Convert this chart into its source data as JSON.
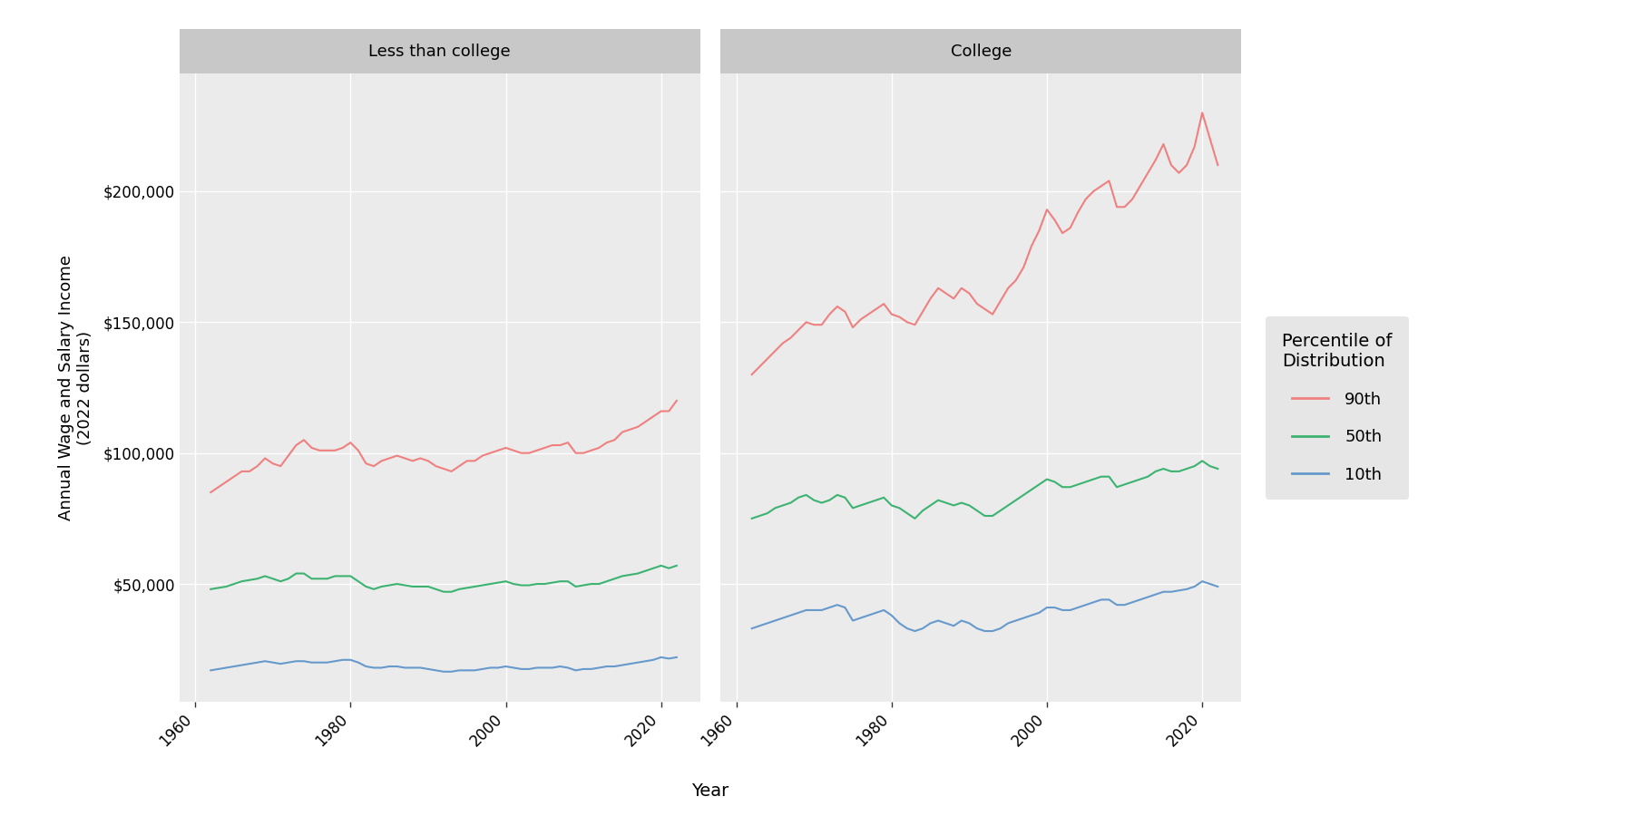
{
  "years": [
    1962,
    1963,
    1964,
    1965,
    1966,
    1967,
    1968,
    1969,
    1970,
    1971,
    1972,
    1973,
    1974,
    1975,
    1976,
    1977,
    1978,
    1979,
    1980,
    1981,
    1982,
    1983,
    1984,
    1985,
    1986,
    1987,
    1988,
    1989,
    1990,
    1991,
    1992,
    1993,
    1994,
    1995,
    1996,
    1997,
    1998,
    1999,
    2000,
    2001,
    2002,
    2003,
    2004,
    2005,
    2006,
    2007,
    2008,
    2009,
    2010,
    2011,
    2012,
    2013,
    2014,
    2015,
    2016,
    2017,
    2018,
    2019,
    2020,
    2021,
    2022
  ],
  "noncollege_p90": [
    85000,
    87000,
    89000,
    91000,
    93000,
    93000,
    95000,
    98000,
    96000,
    95000,
    99000,
    103000,
    105000,
    102000,
    101000,
    101000,
    101000,
    102000,
    104000,
    101000,
    96000,
    95000,
    97000,
    98000,
    99000,
    98000,
    97000,
    98000,
    97000,
    95000,
    94000,
    93000,
    95000,
    97000,
    97000,
    99000,
    100000,
    101000,
    102000,
    101000,
    100000,
    100000,
    101000,
    102000,
    103000,
    103000,
    104000,
    100000,
    100000,
    101000,
    102000,
    104000,
    105000,
    108000,
    109000,
    110000,
    112000,
    114000,
    116000,
    116000,
    120000
  ],
  "noncollege_p50": [
    48000,
    48500,
    49000,
    50000,
    51000,
    51500,
    52000,
    53000,
    52000,
    51000,
    52000,
    54000,
    54000,
    52000,
    52000,
    52000,
    53000,
    53000,
    53000,
    51000,
    49000,
    48000,
    49000,
    49500,
    50000,
    49500,
    49000,
    49000,
    49000,
    48000,
    47000,
    47000,
    48000,
    48500,
    49000,
    49500,
    50000,
    50500,
    51000,
    50000,
    49500,
    49500,
    50000,
    50000,
    50500,
    51000,
    51000,
    49000,
    49500,
    50000,
    50000,
    51000,
    52000,
    53000,
    53500,
    54000,
    55000,
    56000,
    57000,
    56000,
    57000
  ],
  "noncollege_p10": [
    17000,
    17500,
    18000,
    18500,
    19000,
    19500,
    20000,
    20500,
    20000,
    19500,
    20000,
    20500,
    20500,
    20000,
    20000,
    20000,
    20500,
    21000,
    21000,
    20000,
    18500,
    18000,
    18000,
    18500,
    18500,
    18000,
    18000,
    18000,
    17500,
    17000,
    16500,
    16500,
    17000,
    17000,
    17000,
    17500,
    18000,
    18000,
    18500,
    18000,
    17500,
    17500,
    18000,
    18000,
    18000,
    18500,
    18000,
    17000,
    17500,
    17500,
    18000,
    18500,
    18500,
    19000,
    19500,
    20000,
    20500,
    21000,
    22000,
    21500,
    22000
  ],
  "college_p90": [
    130000,
    133000,
    136000,
    139000,
    142000,
    144000,
    147000,
    150000,
    149000,
    149000,
    153000,
    156000,
    154000,
    148000,
    151000,
    153000,
    155000,
    157000,
    153000,
    152000,
    150000,
    149000,
    154000,
    159000,
    163000,
    161000,
    159000,
    163000,
    161000,
    157000,
    155000,
    153000,
    158000,
    163000,
    166000,
    171000,
    179000,
    185000,
    193000,
    189000,
    184000,
    186000,
    192000,
    197000,
    200000,
    202000,
    204000,
    194000,
    194000,
    197000,
    202000,
    207000,
    212000,
    218000,
    210000,
    207000,
    210000,
    217000,
    230000,
    220000,
    210000
  ],
  "college_p50": [
    75000,
    76000,
    77000,
    79000,
    80000,
    81000,
    83000,
    84000,
    82000,
    81000,
    82000,
    84000,
    83000,
    79000,
    80000,
    81000,
    82000,
    83000,
    80000,
    79000,
    77000,
    75000,
    78000,
    80000,
    82000,
    81000,
    80000,
    81000,
    80000,
    78000,
    76000,
    76000,
    78000,
    80000,
    82000,
    84000,
    86000,
    88000,
    90000,
    89000,
    87000,
    87000,
    88000,
    89000,
    90000,
    91000,
    91000,
    87000,
    88000,
    89000,
    90000,
    91000,
    93000,
    94000,
    93000,
    93000,
    94000,
    95000,
    97000,
    95000,
    94000
  ],
  "college_p10": [
    33000,
    34000,
    35000,
    36000,
    37000,
    38000,
    39000,
    40000,
    40000,
    40000,
    41000,
    42000,
    41000,
    36000,
    37000,
    38000,
    39000,
    40000,
    38000,
    35000,
    33000,
    32000,
    33000,
    35000,
    36000,
    35000,
    34000,
    36000,
    35000,
    33000,
    32000,
    32000,
    33000,
    35000,
    36000,
    37000,
    38000,
    39000,
    41000,
    41000,
    40000,
    40000,
    41000,
    42000,
    43000,
    44000,
    44000,
    42000,
    42000,
    43000,
    44000,
    45000,
    46000,
    47000,
    47000,
    47500,
    48000,
    49000,
    51000,
    50000,
    49000
  ],
  "panel_titles": [
    "Less than college",
    "College"
  ],
  "legend_title": "Percentile of\nDistribution",
  "legend_labels": [
    "90th",
    "50th",
    "10th"
  ],
  "colors": {
    "p90": "#F08080",
    "p50": "#3CB371",
    "p10": "#6699CC"
  },
  "xlabel": "Year",
  "ylabel": "Annual Wage and Salary Income\n(2022 dollars)",
  "yticks": [
    50000,
    100000,
    150000,
    200000
  ],
  "ytick_labels": [
    "$50,000",
    "$100,000",
    "$150,000",
    "$200,000"
  ],
  "ylim": [
    5000,
    245000
  ],
  "xlim": [
    1958,
    2025
  ],
  "xticks": [
    1960,
    1980,
    2000,
    2020
  ],
  "panel_bg": "#EBEBEB",
  "fig_bg": "#FFFFFF",
  "grid_color": "#FFFFFF",
  "linewidth": 1.5,
  "strip_bg": "#C8C8C8",
  "legend_key_bg": "#E0E0E0"
}
